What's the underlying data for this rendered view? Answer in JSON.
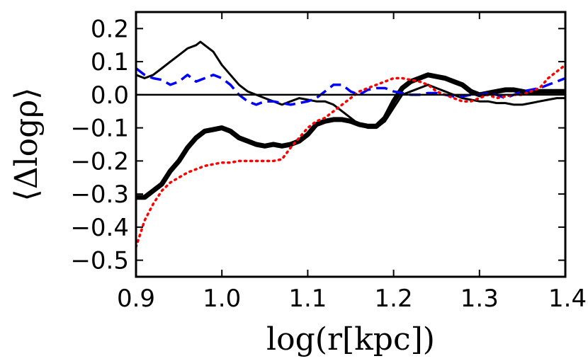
{
  "chart_data": {
    "type": "line",
    "title": "",
    "xlabel": "log(r[kpc])",
    "ylabel": "⟨Δlogρ⟩",
    "xlim": [
      0.9,
      1.4
    ],
    "ylim": [
      -0.55,
      0.25
    ],
    "xticks": [
      0.9,
      1.0,
      1.1,
      1.2,
      1.3,
      1.4
    ],
    "xtick_labels": [
      "0.9",
      "1.0",
      "1.1",
      "1.2",
      "1.3",
      "1.4"
    ],
    "yticks": [
      0.2,
      0.1,
      0.0,
      -0.1,
      -0.2,
      -0.3,
      -0.4,
      -0.5
    ],
    "ytick_labels": [
      "0.2",
      "0.1",
      "0.0",
      "−0.1",
      "−0.2",
      "−0.3",
      "−0.4",
      "−0.5"
    ],
    "reference_line": 0.0,
    "grid": false,
    "legend": "none",
    "series": [
      {
        "name": "thin-black",
        "color": "#000000",
        "style": "solid",
        "width": "thin",
        "x": [
          0.9,
          0.91,
          0.92,
          0.93,
          0.94,
          0.95,
          0.96,
          0.97,
          0.975,
          0.98,
          0.99,
          1.0,
          1.01,
          1.02,
          1.03,
          1.04,
          1.05,
          1.06,
          1.07,
          1.08,
          1.09,
          1.1,
          1.11,
          1.12,
          1.13,
          1.14,
          1.15,
          1.16,
          1.17,
          1.18,
          1.19,
          1.2,
          1.21,
          1.22,
          1.23,
          1.24,
          1.25,
          1.26,
          1.27,
          1.28,
          1.29,
          1.3,
          1.31,
          1.32,
          1.33,
          1.34,
          1.35,
          1.36,
          1.37,
          1.38,
          1.39,
          1.4
        ],
        "y": [
          0.06,
          0.05,
          0.06,
          0.08,
          0.1,
          0.12,
          0.14,
          0.15,
          0.16,
          0.15,
          0.13,
          0.09,
          0.06,
          0.03,
          0.01,
          0.0,
          -0.01,
          -0.02,
          -0.03,
          -0.02,
          -0.01,
          -0.015,
          -0.02,
          -0.02,
          -0.03,
          -0.05,
          -0.07,
          -0.09,
          -0.1,
          -0.1,
          -0.08,
          -0.04,
          0.0,
          0.01,
          0.02,
          0.03,
          0.02,
          0.01,
          0.0,
          -0.01,
          -0.015,
          -0.02,
          -0.02,
          -0.025,
          -0.025,
          -0.03,
          -0.03,
          -0.025,
          -0.02,
          -0.015,
          -0.01,
          -0.01
        ]
      },
      {
        "name": "thick-black",
        "color": "#000000",
        "style": "solid",
        "width": "thick",
        "x": [
          0.9,
          0.91,
          0.92,
          0.93,
          0.94,
          0.95,
          0.96,
          0.97,
          0.98,
          0.99,
          1.0,
          1.01,
          1.02,
          1.03,
          1.04,
          1.05,
          1.06,
          1.07,
          1.08,
          1.09,
          1.1,
          1.11,
          1.12,
          1.13,
          1.14,
          1.15,
          1.16,
          1.17,
          1.18,
          1.19,
          1.2,
          1.21,
          1.22,
          1.23,
          1.24,
          1.25,
          1.26,
          1.27,
          1.28,
          1.29,
          1.3,
          1.31,
          1.32,
          1.33,
          1.34,
          1.35,
          1.36,
          1.37,
          1.38,
          1.39,
          1.4
        ],
        "y": [
          -0.31,
          -0.31,
          -0.29,
          -0.27,
          -0.23,
          -0.2,
          -0.16,
          -0.13,
          -0.11,
          -0.105,
          -0.1,
          -0.11,
          -0.13,
          -0.14,
          -0.15,
          -0.155,
          -0.15,
          -0.155,
          -0.15,
          -0.14,
          -0.12,
          -0.09,
          -0.08,
          -0.075,
          -0.075,
          -0.08,
          -0.09,
          -0.095,
          -0.095,
          -0.07,
          -0.02,
          0.02,
          0.04,
          0.05,
          0.06,
          0.055,
          0.05,
          0.04,
          0.03,
          0.01,
          0.0,
          0.005,
          0.01,
          0.015,
          0.015,
          0.01,
          0.005,
          0.01,
          0.01,
          0.01,
          0.01
        ]
      },
      {
        "name": "dashed-blue",
        "color": "#0000ff",
        "style": "dashed",
        "width": "medium",
        "x": [
          0.9,
          0.91,
          0.92,
          0.93,
          0.94,
          0.95,
          0.96,
          0.97,
          0.98,
          0.99,
          1.0,
          1.01,
          1.02,
          1.03,
          1.04,
          1.05,
          1.06,
          1.07,
          1.08,
          1.09,
          1.1,
          1.11,
          1.12,
          1.13,
          1.14,
          1.15,
          1.16,
          1.17,
          1.18,
          1.19,
          1.2,
          1.21,
          1.22,
          1.23,
          1.24,
          1.25,
          1.26,
          1.27,
          1.28,
          1.29,
          1.3,
          1.31,
          1.32,
          1.33,
          1.34,
          1.35,
          1.36,
          1.37,
          1.38,
          1.39,
          1.4
        ],
        "y": [
          0.08,
          0.06,
          0.05,
          0.045,
          0.03,
          0.04,
          0.06,
          0.04,
          0.05,
          0.06,
          0.05,
          0.03,
          0.0,
          -0.02,
          -0.03,
          -0.02,
          -0.02,
          -0.025,
          -0.03,
          -0.025,
          -0.02,
          -0.01,
          0.01,
          0.03,
          0.03,
          0.01,
          0.0,
          0.015,
          0.02,
          0.02,
          0.01,
          0.005,
          0.0,
          0.0,
          0.005,
          0.005,
          0.0,
          -0.005,
          -0.005,
          0.0,
          0.0,
          0.005,
          0.0,
          -0.01,
          0.0,
          0.01,
          0.015,
          0.02,
          0.03,
          0.04,
          0.05
        ]
      },
      {
        "name": "dotted-red",
        "color": "#ff0000",
        "style": "dotted",
        "width": "medium",
        "x": [
          0.9,
          0.91,
          0.92,
          0.93,
          0.94,
          0.95,
          0.96,
          0.97,
          0.98,
          0.99,
          1.0,
          1.01,
          1.02,
          1.03,
          1.04,
          1.05,
          1.06,
          1.07,
          1.08,
          1.09,
          1.1,
          1.11,
          1.12,
          1.13,
          1.14,
          1.15,
          1.16,
          1.17,
          1.18,
          1.19,
          1.2,
          1.21,
          1.22,
          1.23,
          1.24,
          1.25,
          1.26,
          1.27,
          1.28,
          1.29,
          1.3,
          1.31,
          1.32,
          1.33,
          1.34,
          1.35,
          1.36,
          1.37,
          1.38,
          1.39,
          1.4
        ],
        "y": [
          -0.46,
          -0.38,
          -0.33,
          -0.29,
          -0.265,
          -0.25,
          -0.235,
          -0.225,
          -0.215,
          -0.21,
          -0.205,
          -0.205,
          -0.2,
          -0.2,
          -0.2,
          -0.2,
          -0.2,
          -0.195,
          -0.16,
          -0.13,
          -0.1,
          -0.08,
          -0.07,
          -0.05,
          -0.03,
          -0.01,
          0.01,
          0.02,
          0.03,
          0.04,
          0.05,
          0.05,
          0.045,
          0.04,
          0.03,
          0.01,
          0.0,
          -0.01,
          -0.02,
          -0.02,
          -0.01,
          0.0,
          -0.01,
          -0.005,
          0.0,
          0.0,
          0.01,
          0.02,
          0.05,
          0.07,
          0.09
        ]
      }
    ]
  }
}
